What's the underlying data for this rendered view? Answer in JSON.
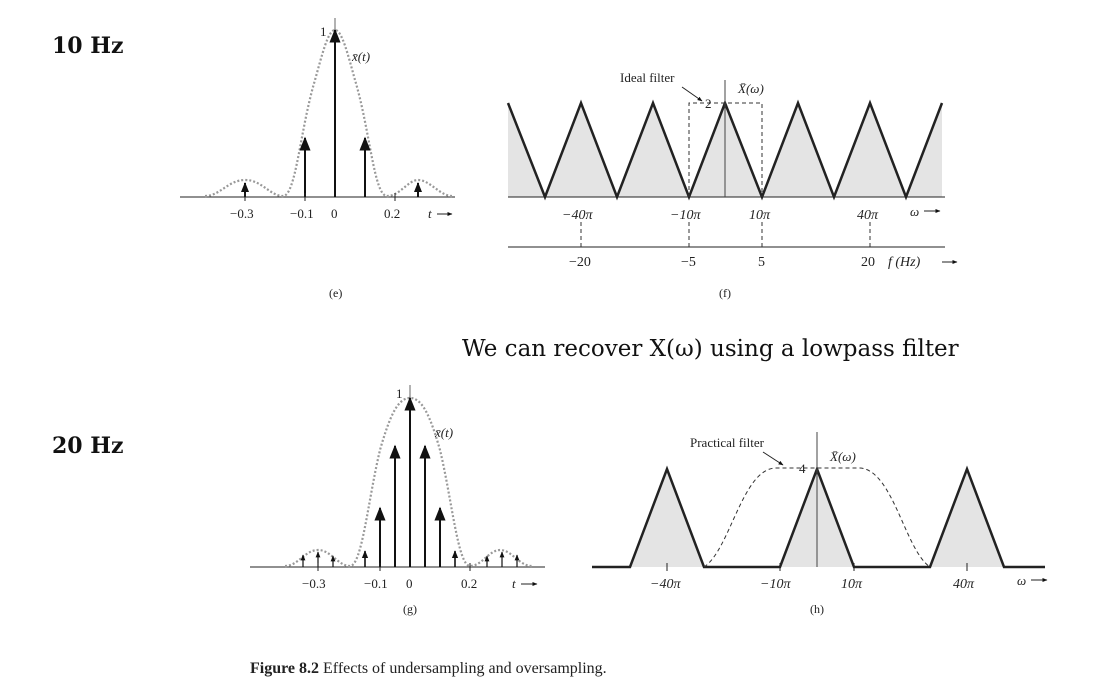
{
  "labels": {
    "row1": "10 Hz",
    "row2": "20 Hz"
  },
  "note": "We can recover X(ω) using a lowpass filter",
  "caption": {
    "figure": "Figure 8.2",
    "text": "Effects of undersampling and oversampling."
  },
  "panel_e": {
    "sublabel": "(e)",
    "signal_label": "x̄(t)",
    "peak_label": "1",
    "tick_labels": [
      "−0.3",
      "−0.1",
      "0",
      "0.2"
    ],
    "axis_var": "t"
  },
  "panel_f": {
    "sublabel": "(f)",
    "filter_label": "Ideal filter",
    "signal_label": "X̄(ω)",
    "peak_label": "2",
    "omega_ticks": [
      "−40π",
      "−10π",
      "10π",
      "40π"
    ],
    "omega_var": "ω",
    "hz_ticks": [
      "−20",
      "−5",
      "5",
      "20"
    ],
    "hz_var": "f (Hz)"
  },
  "panel_g": {
    "sublabel": "(g)",
    "signal_label": "x̄(t)",
    "peak_label": "1",
    "tick_labels": [
      "−0.3",
      "−0.1",
      "0",
      "0.2"
    ],
    "axis_var": "t"
  },
  "panel_h": {
    "sublabel": "(h)",
    "filter_label": "Practical filter",
    "signal_label": "X̄(ω)",
    "peak_label": "4",
    "omega_ticks": [
      "−40π",
      "−10π",
      "10π",
      "40π"
    ],
    "omega_var": "ω"
  }
}
